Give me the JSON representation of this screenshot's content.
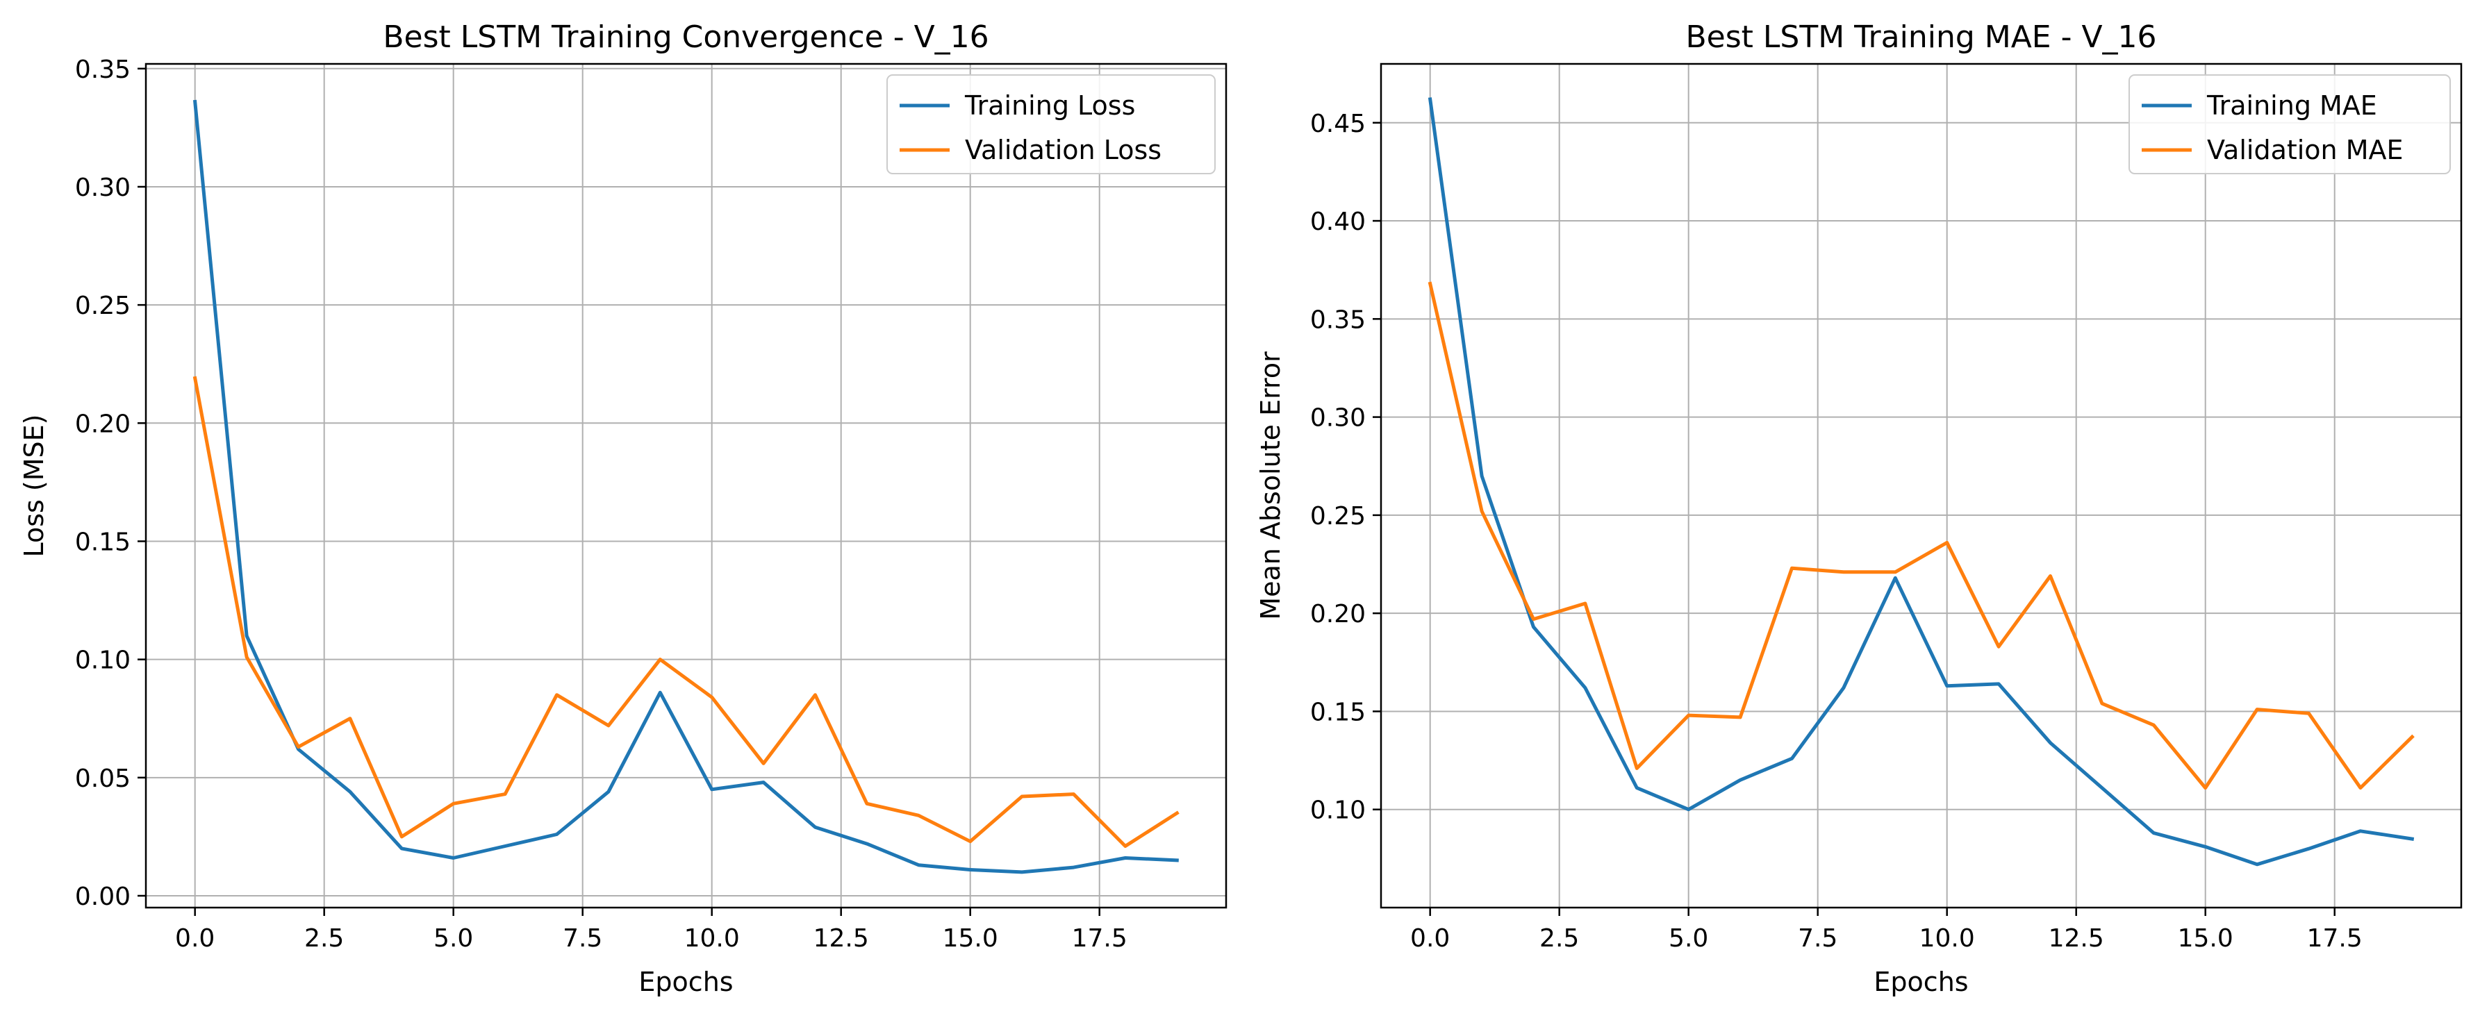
{
  "colors": {
    "series_1": "#1f77b4",
    "series_2": "#ff7f0e",
    "grid": "#b0b0b0",
    "axes": "#000000",
    "legend_border": "#cccccc"
  },
  "chart_data": [
    {
      "type": "line",
      "title": "Best LSTM Training Convergence - V_16",
      "xlabel": "Epochs",
      "ylabel": "Loss (MSE)",
      "xlim": [
        -0.95,
        19.95
      ],
      "ylim": [
        -0.005,
        0.352
      ],
      "xticks": [
        0,
        2.5,
        5,
        7.5,
        10,
        12.5,
        15,
        17.5
      ],
      "xtick_labels": [
        "0.0",
        "2.5",
        "5.0",
        "7.5",
        "10.0",
        "12.5",
        "15.0",
        "17.5"
      ],
      "yticks": [
        0,
        0.05,
        0.1,
        0.15,
        0.2,
        0.25,
        0.3,
        0.35
      ],
      "ytick_labels": [
        "0.00",
        "0.05",
        "0.10",
        "0.15",
        "0.20",
        "0.25",
        "0.30",
        "0.35"
      ],
      "grid": true,
      "legend": "top-right",
      "x": [
        0,
        1,
        2,
        3,
        4,
        5,
        6,
        7,
        8,
        9,
        10,
        11,
        12,
        13,
        14,
        15,
        16,
        17,
        18,
        19
      ],
      "series": [
        {
          "name": "Training Loss",
          "values": [
            0.336,
            0.11,
            0.062,
            0.044,
            0.02,
            0.016,
            0.021,
            0.026,
            0.044,
            0.086,
            0.045,
            0.048,
            0.029,
            0.022,
            0.013,
            0.011,
            0.01,
            0.012,
            0.016,
            0.015
          ]
        },
        {
          "name": "Validation Loss",
          "values": [
            0.219,
            0.101,
            0.063,
            0.075,
            0.025,
            0.039,
            0.043,
            0.085,
            0.072,
            0.1,
            0.084,
            0.056,
            0.085,
            0.039,
            0.034,
            0.023,
            0.042,
            0.043,
            0.021,
            0.035
          ]
        }
      ]
    },
    {
      "type": "line",
      "title": "Best LSTM Training MAE - V_16",
      "xlabel": "Epochs",
      "ylabel": "Mean Absolute Error",
      "xlim": [
        -0.95,
        19.95
      ],
      "ylim": [
        0.05,
        0.48
      ],
      "xticks": [
        0,
        2.5,
        5,
        7.5,
        10,
        12.5,
        15,
        17.5
      ],
      "xtick_labels": [
        "0.0",
        "2.5",
        "5.0",
        "7.5",
        "10.0",
        "12.5",
        "15.0",
        "17.5"
      ],
      "yticks": [
        0.1,
        0.15,
        0.2,
        0.25,
        0.3,
        0.35,
        0.4,
        0.45
      ],
      "ytick_labels": [
        "0.10",
        "0.15",
        "0.20",
        "0.25",
        "0.30",
        "0.35",
        "0.40",
        "0.45"
      ],
      "grid": true,
      "legend": "top-right",
      "x": [
        0,
        1,
        2,
        3,
        4,
        5,
        6,
        7,
        8,
        9,
        10,
        11,
        12,
        13,
        14,
        15,
        16,
        17,
        18,
        19
      ],
      "series": [
        {
          "name": "Training MAE",
          "values": [
            0.462,
            0.27,
            0.193,
            0.162,
            0.111,
            0.1,
            0.115,
            0.126,
            0.162,
            0.218,
            0.163,
            0.164,
            0.134,
            0.111,
            0.088,
            0.081,
            0.072,
            0.08,
            0.089,
            0.085
          ]
        },
        {
          "name": "Validation MAE",
          "values": [
            0.368,
            0.252,
            0.197,
            0.205,
            0.121,
            0.148,
            0.147,
            0.223,
            0.221,
            0.221,
            0.236,
            0.183,
            0.219,
            0.154,
            0.143,
            0.111,
            0.151,
            0.149,
            0.111,
            0.137
          ]
        }
      ]
    }
  ]
}
